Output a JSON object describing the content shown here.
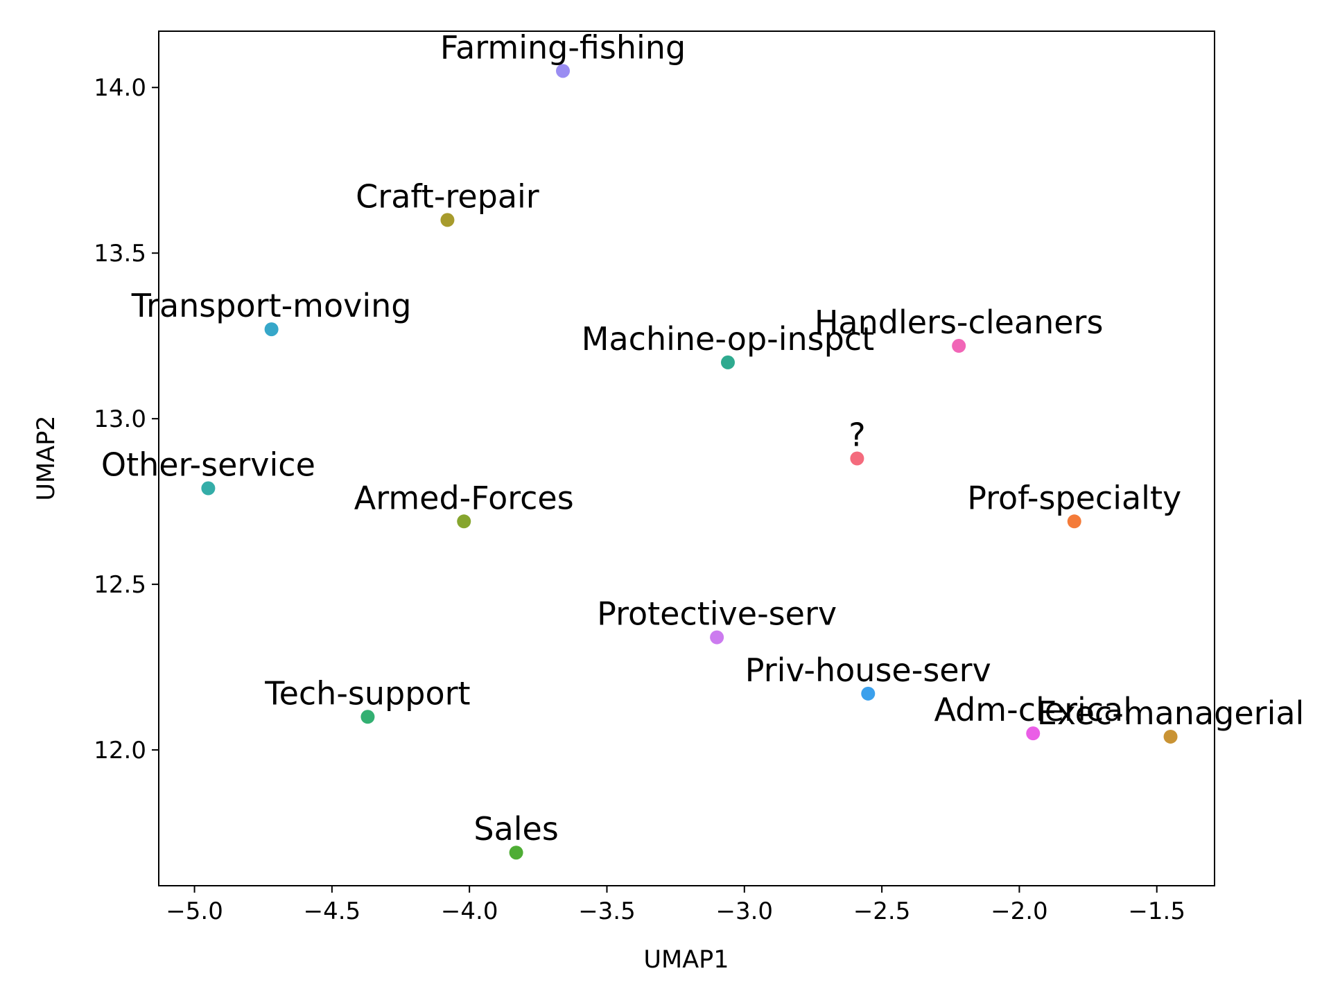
{
  "chart_data": {
    "type": "scatter",
    "title": "",
    "xlabel": "UMAP1",
    "ylabel": "UMAP2",
    "xlim": [
      -5.13,
      -1.29
    ],
    "ylim": [
      11.59,
      14.17
    ],
    "xticks": [
      -5.0,
      -4.5,
      -4.0,
      -3.5,
      -3.0,
      -2.5,
      -2.0,
      -1.5
    ],
    "xtick_labels": [
      "−5.0",
      "−4.5",
      "−4.0",
      "−3.5",
      "−3.0",
      "−2.5",
      "−2.0",
      "−1.5"
    ],
    "yticks": [
      12.0,
      12.5,
      13.0,
      13.5,
      14.0
    ],
    "ytick_labels": [
      "12.0",
      "12.5",
      "13.0",
      "13.5",
      "14.0"
    ],
    "grid": false,
    "legend": "none",
    "points": [
      {
        "label": "Farming-fishing",
        "x": -3.66,
        "y": 14.05,
        "color": "#9a8df2"
      },
      {
        "label": "Craft-repair",
        "x": -4.08,
        "y": 13.6,
        "color": "#a79b2c"
      },
      {
        "label": "Transport-moving",
        "x": -4.72,
        "y": 13.27,
        "color": "#36a7c9"
      },
      {
        "label": "Machine-op-inspct",
        "x": -3.06,
        "y": 13.17,
        "color": "#2eaa8f"
      },
      {
        "label": "Handlers-cleaners",
        "x": -2.22,
        "y": 13.22,
        "color": "#f166b7"
      },
      {
        "label": "?",
        "x": -2.59,
        "y": 12.88,
        "color": "#f46b7d"
      },
      {
        "label": "Other-service",
        "x": -4.95,
        "y": 12.79,
        "color": "#34ada8"
      },
      {
        "label": "Armed-Forces",
        "x": -4.02,
        "y": 12.69,
        "color": "#86a52e"
      },
      {
        "label": "Prof-specialty",
        "x": -1.8,
        "y": 12.69,
        "color": "#f47b39"
      },
      {
        "label": "Protective-serv",
        "x": -3.1,
        "y": 12.34,
        "color": "#cc7bef"
      },
      {
        "label": "Priv-house-serv",
        "x": -2.55,
        "y": 12.17,
        "color": "#3ba0ec"
      },
      {
        "label": "Tech-support",
        "x": -4.37,
        "y": 12.1,
        "color": "#33b072"
      },
      {
        "label": "Adm-clerical",
        "x": -1.95,
        "y": 12.05,
        "color": "#ea5ee6"
      },
      {
        "label": "Exec-managerial",
        "x": -1.45,
        "y": 12.04,
        "color": "#c99334"
      },
      {
        "label": "Sales",
        "x": -3.83,
        "y": 11.69,
        "color": "#4ead34"
      }
    ]
  }
}
